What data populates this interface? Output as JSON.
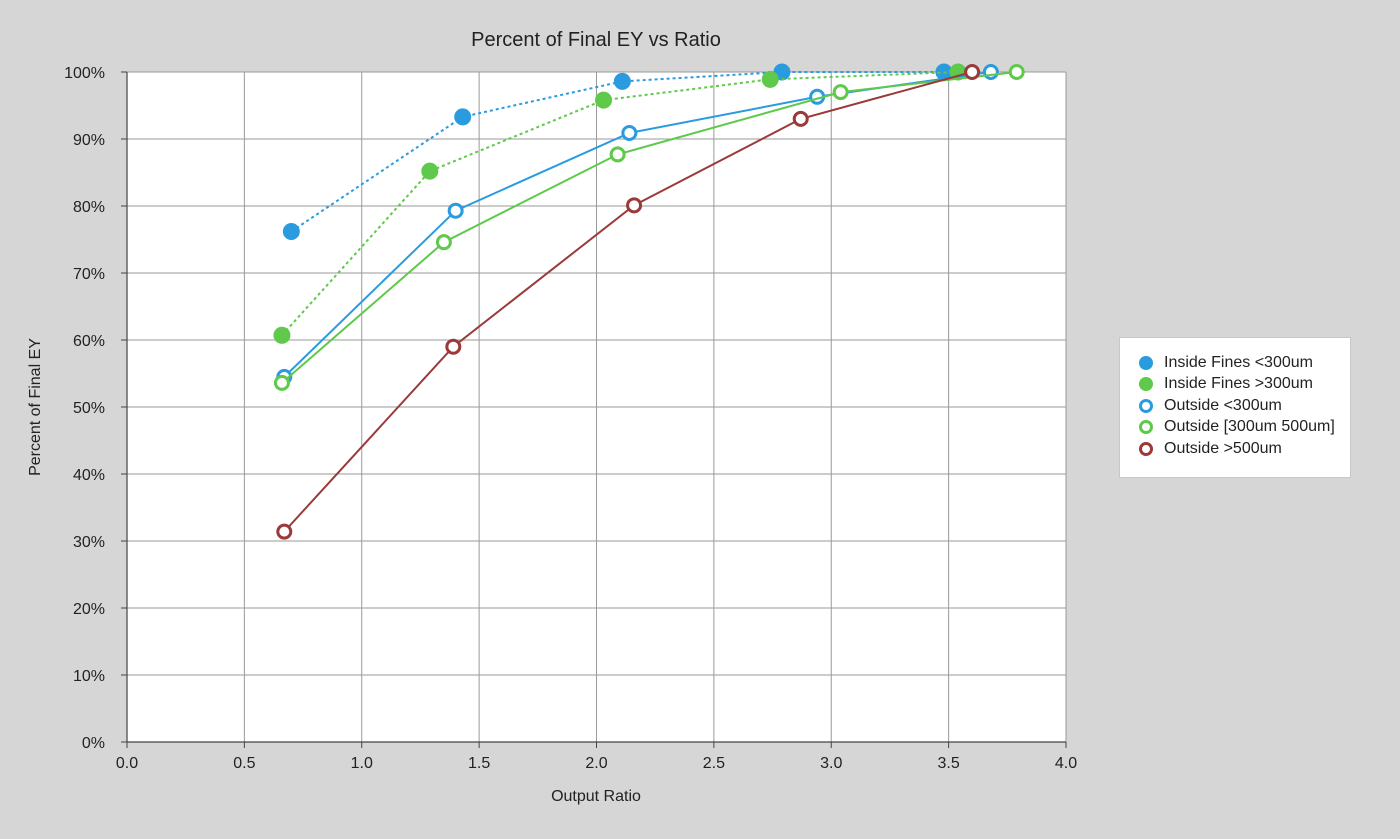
{
  "chart_data": {
    "type": "line",
    "title": "Percent of Final EY vs Ratio",
    "xlabel": "Output Ratio",
    "ylabel": "Percent of Final EY",
    "xlim": [
      0,
      4
    ],
    "ylim": [
      0,
      100
    ],
    "x_ticks": [
      "0.0",
      "0.5",
      "1.0",
      "1.5",
      "2.0",
      "2.5",
      "3.0",
      "3.5",
      "4.0"
    ],
    "y_ticks": [
      "0%",
      "10%",
      "20%",
      "30%",
      "40%",
      "50%",
      "60%",
      "70%",
      "80%",
      "90%",
      "100%"
    ],
    "grid": true,
    "legend_position": "right",
    "series": [
      {
        "name": "Inside Fines <300um",
        "color": "#2b9be0",
        "marker": "filled",
        "line": "dotted",
        "points": [
          [
            0.7,
            76.2
          ],
          [
            1.43,
            93.3
          ],
          [
            2.11,
            98.6
          ],
          [
            2.79,
            100.0
          ],
          [
            3.48,
            100.0
          ]
        ]
      },
      {
        "name": "Inside Fines >300um",
        "color": "#5ec94a",
        "marker": "filled",
        "line": "dotted",
        "points": [
          [
            0.66,
            60.7
          ],
          [
            1.29,
            85.2
          ],
          [
            2.03,
            95.8
          ],
          [
            2.74,
            98.9
          ],
          [
            3.54,
            100.0
          ]
        ]
      },
      {
        "name": "Outside <300um",
        "color": "#2b9be0",
        "marker": "hollow",
        "line": "solid",
        "points": [
          [
            0.67,
            54.5
          ],
          [
            1.4,
            79.3
          ],
          [
            2.14,
            90.9
          ],
          [
            2.94,
            96.3
          ],
          [
            3.68,
            100.0
          ]
        ]
      },
      {
        "name": "Outside [300um 500um]",
        "color": "#5ec94a",
        "marker": "hollow",
        "line": "solid",
        "points": [
          [
            0.66,
            53.6
          ],
          [
            1.35,
            74.6
          ],
          [
            2.09,
            87.7
          ],
          [
            3.04,
            97.0
          ],
          [
            3.79,
            100.0
          ]
        ]
      },
      {
        "name": "Outside >500um",
        "color": "#9a3a3a",
        "marker": "hollow",
        "line": "solid",
        "points": [
          [
            0.67,
            31.4
          ],
          [
            1.39,
            59.0
          ],
          [
            2.16,
            80.1
          ],
          [
            2.87,
            93.0
          ],
          [
            3.6,
            100.0
          ]
        ]
      }
    ]
  }
}
